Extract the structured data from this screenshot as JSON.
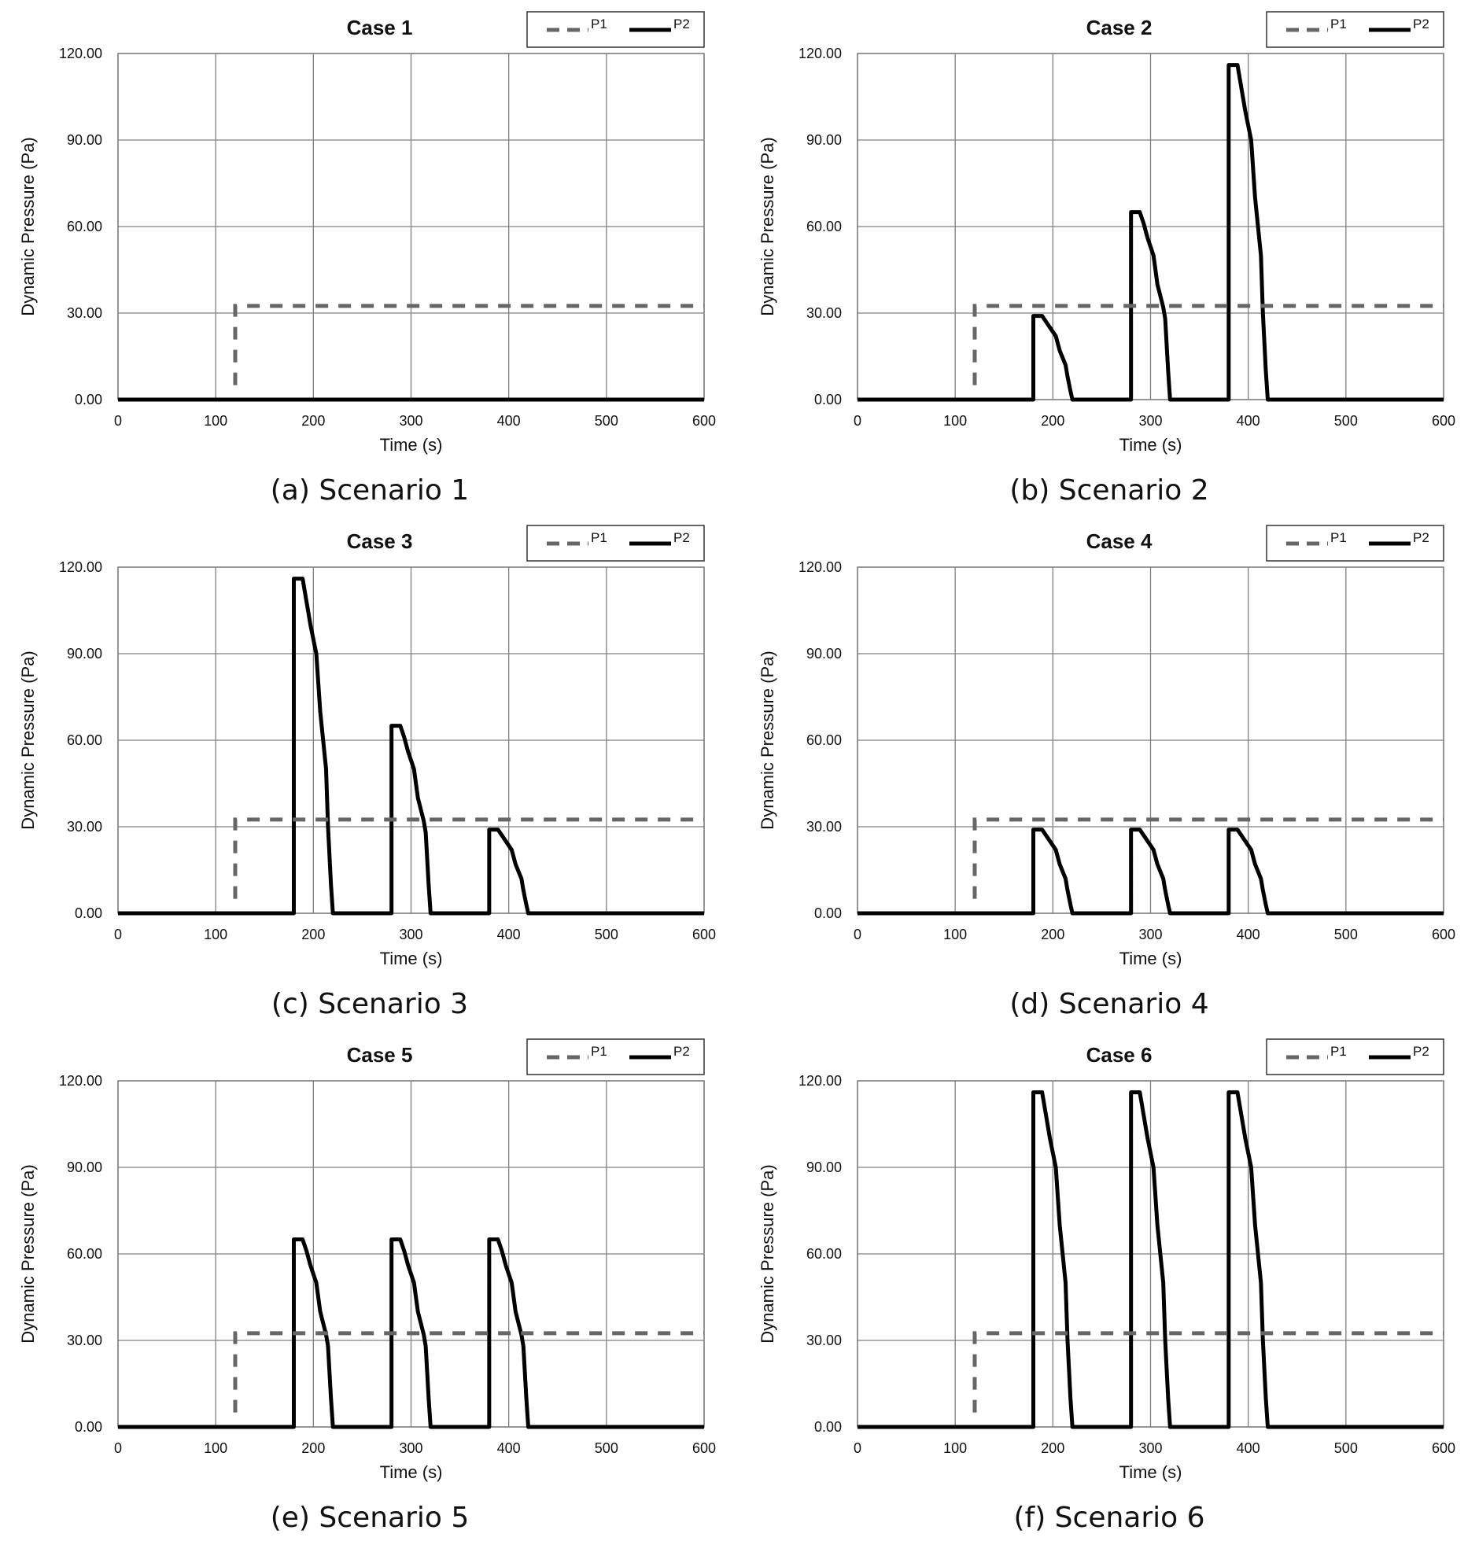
{
  "figure": {
    "colors": {
      "p1": "#666666",
      "p2": "#000000",
      "grid": "#7f7f7f",
      "frame": "#7f7f7f",
      "text": "#111111"
    },
    "panels": [
      {
        "caption": "(a) Scenario 1"
      },
      {
        "caption": "(b) Scenario 2"
      },
      {
        "caption": "(c) Scenario 3"
      },
      {
        "caption": "(d) Scenario 4"
      },
      {
        "caption": "(e) Scenario 5"
      },
      {
        "caption": "(f) Scenario 6"
      }
    ]
  },
  "chart_data": [
    {
      "type": "line",
      "title": "Case 1",
      "xlabel": "Time (s)",
      "ylabel": "Dynamic Pressure (Pa)",
      "xlim": [
        0,
        600
      ],
      "ylim": [
        0,
        120
      ],
      "grid": true,
      "legend_position": "top-right",
      "xticks": [
        "0",
        "100",
        "200",
        "300",
        "400",
        "500",
        "600"
      ],
      "yticks": [
        "0.00",
        "30.00",
        "60.00",
        "90.00",
        "120.00"
      ],
      "series": [
        {
          "name": "P1",
          "style": "dashed",
          "x": [
            120,
            120,
            600
          ],
          "y": [
            5,
            32.5,
            32.5
          ]
        },
        {
          "name": "P2",
          "style": "solid",
          "x": [
            0,
            600
          ],
          "y": [
            0,
            0
          ]
        }
      ]
    },
    {
      "type": "line",
      "title": "Case 2",
      "xlabel": "Time (s)",
      "ylabel": "Dynamic Pressure (Pa)",
      "xlim": [
        0,
        600
      ],
      "ylim": [
        0,
        120
      ],
      "grid": true,
      "legend_position": "top-right",
      "xticks": [
        "0",
        "100",
        "200",
        "300",
        "400",
        "500",
        "600"
      ],
      "yticks": [
        "0.00",
        "30.00",
        "60.00",
        "90.00",
        "120.00"
      ],
      "series": [
        {
          "name": "P1",
          "style": "dashed",
          "x": [
            120,
            120,
            600
          ],
          "y": [
            5,
            32.5,
            32.5
          ]
        },
        {
          "name": "P2",
          "style": "solid",
          "x": [
            0,
            180,
            180,
            189,
            193,
            197,
            203,
            207,
            213,
            215,
            218,
            220,
            280,
            280,
            289,
            293,
            297,
            303,
            307,
            313,
            315,
            318,
            320,
            380,
            380,
            389,
            393,
            397,
            403,
            407,
            413,
            415,
            418,
            420,
            600
          ],
          "y": [
            0,
            0,
            29,
            29,
            27,
            25,
            22,
            17,
            12,
            8,
            3,
            0,
            0,
            65,
            65,
            61,
            56,
            50,
            40,
            32,
            28,
            10,
            0,
            0,
            116,
            116,
            108,
            100,
            90,
            70,
            50,
            30,
            10,
            0,
            0
          ]
        }
      ]
    },
    {
      "type": "line",
      "title": "Case 3",
      "xlabel": "Time (s)",
      "ylabel": "Dynamic Pressure (Pa)",
      "xlim": [
        0,
        600
      ],
      "ylim": [
        0,
        120
      ],
      "grid": true,
      "legend_position": "top-right",
      "xticks": [
        "0",
        "100",
        "200",
        "300",
        "400",
        "500",
        "600"
      ],
      "yticks": [
        "0.00",
        "30.00",
        "60.00",
        "90.00",
        "120.00"
      ],
      "series": [
        {
          "name": "P1",
          "style": "dashed",
          "x": [
            120,
            120,
            600
          ],
          "y": [
            5,
            32.5,
            32.5
          ]
        },
        {
          "name": "P2",
          "style": "solid",
          "x": [
            0,
            180,
            180,
            189,
            193,
            197,
            203,
            207,
            213,
            215,
            218,
            220,
            280,
            280,
            289,
            293,
            297,
            303,
            307,
            313,
            315,
            318,
            320,
            380,
            380,
            389,
            393,
            397,
            403,
            407,
            413,
            415,
            418,
            420,
            600
          ],
          "y": [
            0,
            0,
            116,
            116,
            108,
            100,
            90,
            70,
            50,
            30,
            10,
            0,
            0,
            65,
            65,
            61,
            56,
            50,
            40,
            32,
            28,
            10,
            0,
            0,
            29,
            29,
            27,
            25,
            22,
            17,
            12,
            8,
            3,
            0,
            0
          ]
        }
      ]
    },
    {
      "type": "line",
      "title": "Case 4",
      "xlabel": "Time (s)",
      "ylabel": "Dynamic Pressure (Pa)",
      "xlim": [
        0,
        600
      ],
      "ylim": [
        0,
        120
      ],
      "grid": true,
      "legend_position": "top-right",
      "xticks": [
        "0",
        "100",
        "200",
        "300",
        "400",
        "500",
        "600"
      ],
      "yticks": [
        "0.00",
        "30.00",
        "60.00",
        "90.00",
        "120.00"
      ],
      "series": [
        {
          "name": "P1",
          "style": "dashed",
          "x": [
            120,
            120,
            600
          ],
          "y": [
            5,
            32.5,
            32.5
          ]
        },
        {
          "name": "P2",
          "style": "solid",
          "x": [
            0,
            180,
            180,
            189,
            193,
            197,
            203,
            207,
            213,
            215,
            218,
            220,
            280,
            280,
            289,
            293,
            297,
            303,
            307,
            313,
            315,
            318,
            320,
            380,
            380,
            389,
            393,
            397,
            403,
            407,
            413,
            415,
            418,
            420,
            600
          ],
          "y": [
            0,
            0,
            29,
            29,
            27,
            25,
            22,
            17,
            12,
            8,
            3,
            0,
            0,
            29,
            29,
            27,
            25,
            22,
            17,
            12,
            8,
            3,
            0,
            0,
            29,
            29,
            27,
            25,
            22,
            17,
            12,
            8,
            3,
            0,
            0
          ]
        }
      ]
    },
    {
      "type": "line",
      "title": "Case 5",
      "xlabel": "Time (s)",
      "ylabel": "Dynamic Pressure (Pa)",
      "xlim": [
        0,
        600
      ],
      "ylim": [
        0,
        120
      ],
      "grid": true,
      "legend_position": "top-right",
      "xticks": [
        "0",
        "100",
        "200",
        "300",
        "400",
        "500",
        "600"
      ],
      "yticks": [
        "0.00",
        "30.00",
        "60.00",
        "90.00",
        "120.00"
      ],
      "series": [
        {
          "name": "P1",
          "style": "dashed",
          "x": [
            120,
            120,
            600
          ],
          "y": [
            5,
            32.5,
            32.5
          ]
        },
        {
          "name": "P2",
          "style": "solid",
          "x": [
            0,
            180,
            180,
            189,
            193,
            197,
            203,
            207,
            213,
            215,
            218,
            220,
            280,
            280,
            289,
            293,
            297,
            303,
            307,
            313,
            315,
            318,
            320,
            380,
            380,
            389,
            393,
            397,
            403,
            407,
            413,
            415,
            418,
            420,
            600
          ],
          "y": [
            0,
            0,
            65,
            65,
            61,
            56,
            50,
            40,
            32,
            28,
            10,
            0,
            0,
            65,
            65,
            61,
            56,
            50,
            40,
            32,
            28,
            10,
            0,
            0,
            65,
            65,
            61,
            56,
            50,
            40,
            32,
            28,
            10,
            0,
            0
          ]
        }
      ]
    },
    {
      "type": "line",
      "title": "Case 6",
      "xlabel": "Time (s)",
      "ylabel": "Dynamic Pressure (Pa)",
      "xlim": [
        0,
        600
      ],
      "ylim": [
        0,
        120
      ],
      "grid": true,
      "legend_position": "top-right",
      "xticks": [
        "0",
        "100",
        "200",
        "300",
        "400",
        "500",
        "600"
      ],
      "yticks": [
        "0.00",
        "30.00",
        "60.00",
        "90.00",
        "120.00"
      ],
      "series": [
        {
          "name": "P1",
          "style": "dashed",
          "x": [
            120,
            120,
            600
          ],
          "y": [
            5,
            32.5,
            32.5
          ]
        },
        {
          "name": "P2",
          "style": "solid",
          "x": [
            0,
            180,
            180,
            189,
            193,
            197,
            203,
            207,
            213,
            215,
            218,
            220,
            280,
            280,
            289,
            293,
            297,
            303,
            307,
            313,
            315,
            318,
            320,
            380,
            380,
            389,
            393,
            397,
            403,
            407,
            413,
            415,
            418,
            420,
            600
          ],
          "y": [
            0,
            0,
            116,
            116,
            108,
            100,
            90,
            70,
            50,
            30,
            10,
            0,
            0,
            116,
            116,
            108,
            100,
            90,
            70,
            50,
            30,
            10,
            0,
            0,
            116,
            116,
            108,
            100,
            90,
            70,
            50,
            30,
            10,
            0,
            0
          ]
        }
      ]
    }
  ]
}
